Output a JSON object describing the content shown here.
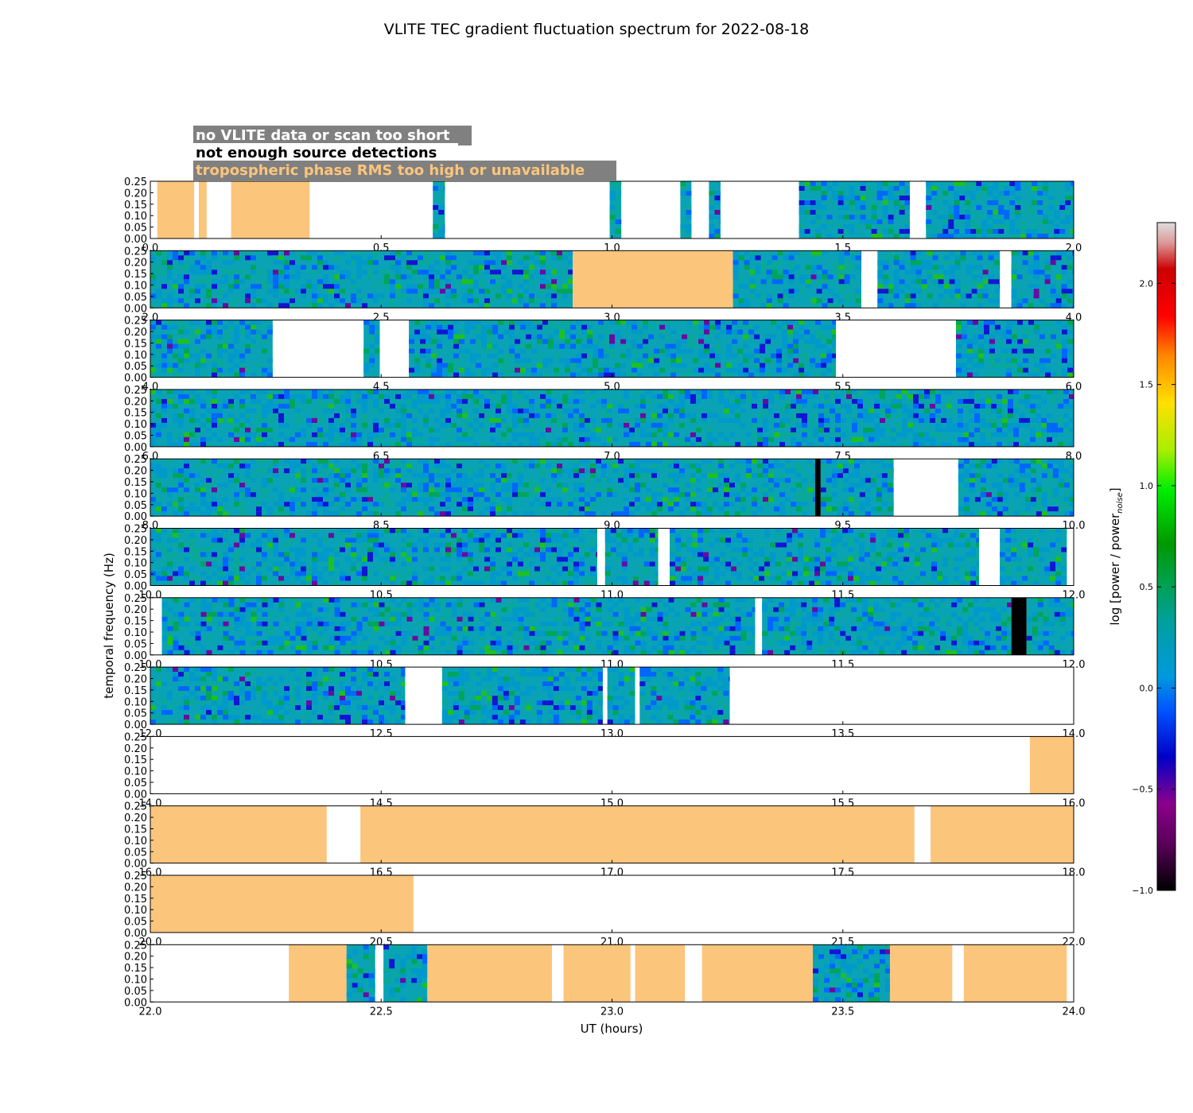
{
  "chart_data": {
    "type": "heatmap",
    "title": "VLITE TEC gradient fluctuation spectrum for 2022-08-18",
    "xlabel": "UT (hours)",
    "ylabel": "temporal frequency (Hz)",
    "colorbar_label": "log [power / power",
    "colorbar_label_sub": "noise",
    "colorbar_label_end": "]",
    "colorbar_range": [
      -1.0,
      2.3
    ],
    "colorbar_ticks": [
      "−1.0",
      "−0.5",
      "0.0",
      "0.5",
      "1.0",
      "1.5",
      "2.0"
    ],
    "colorbar_tick_values": [
      -1.0,
      -0.5,
      0.0,
      0.5,
      1.0,
      1.5,
      2.0
    ],
    "ylim": [
      0,
      0.25
    ],
    "y_ticks": [
      "0.00",
      "0.05",
      "0.10",
      "0.15",
      "0.20",
      "0.25"
    ],
    "y_tick_values": [
      0,
      0.05,
      0.1,
      0.15,
      0.2,
      0.25
    ],
    "legend": [
      {
        "label": "no VLITE data or scan too short",
        "color": "#ffffff"
      },
      {
        "label": "not enough source detections",
        "color": "#000000"
      },
      {
        "label": "tropospheric phase RMS too high or unavailable",
        "color": "#fcc57c"
      }
    ],
    "colors": {
      "tropo": "#fcc57c",
      "nodet": "#000000",
      "nodata": "#ffffff",
      "legend_bg": "#808080"
    },
    "panels": [
      {
        "x_ticks": [
          "0.0",
          "0.5",
          "1.0",
          "1.5",
          "2.0"
        ],
        "start": 0.0,
        "end": 2.0,
        "segments": [
          {
            "t0": 0.015,
            "t1": 0.095,
            "kind": "tropo"
          },
          {
            "t0": 0.105,
            "t1": 0.122,
            "kind": "tropo"
          },
          {
            "t0": 0.175,
            "t1": 0.345,
            "kind": "tropo"
          },
          {
            "t0": 0.612,
            "t1": 0.638,
            "kind": "data"
          },
          {
            "t0": 0.995,
            "t1": 1.02,
            "kind": "data"
          },
          {
            "t0": 1.148,
            "t1": 1.172,
            "kind": "data"
          },
          {
            "t0": 1.21,
            "t1": 1.235,
            "kind": "data"
          },
          {
            "t0": 1.405,
            "t1": 1.645,
            "kind": "data"
          },
          {
            "t0": 1.68,
            "t1": 2.0,
            "kind": "data"
          }
        ]
      },
      {
        "x_ticks": [
          "2.0",
          "2.5",
          "3.0",
          "3.5",
          "4.0"
        ],
        "start": 2.0,
        "end": 4.0,
        "segments": [
          {
            "t0": 2.0,
            "t1": 2.915,
            "kind": "data"
          },
          {
            "t0": 2.915,
            "t1": 3.262,
            "kind": "tropo"
          },
          {
            "t0": 3.262,
            "t1": 3.54,
            "kind": "data"
          },
          {
            "t0": 3.575,
            "t1": 3.61,
            "kind": "data"
          },
          {
            "t0": 3.61,
            "t1": 3.84,
            "kind": "data"
          },
          {
            "t0": 3.865,
            "t1": 4.0,
            "kind": "data"
          }
        ]
      },
      {
        "x_ticks": [
          "4.0",
          "4.5",
          "5.0",
          "5.5",
          "6.0"
        ],
        "start": 4.0,
        "end": 6.0,
        "segments": [
          {
            "t0": 4.0,
            "t1": 4.265,
            "kind": "data"
          },
          {
            "t0": 4.462,
            "t1": 4.497,
            "kind": "data"
          },
          {
            "t0": 4.56,
            "t1": 5.485,
            "kind": "data"
          },
          {
            "t0": 5.745,
            "t1": 6.0,
            "kind": "data"
          }
        ]
      },
      {
        "x_ticks": [
          "6.0",
          "6.5",
          "7.0",
          "7.5",
          "8.0"
        ],
        "start": 6.0,
        "end": 8.0,
        "segments": [
          {
            "t0": 6.0,
            "t1": 8.0,
            "kind": "data"
          }
        ]
      },
      {
        "x_ticks": [
          "8.0",
          "8.5",
          "9.0",
          "9.5",
          "10.0"
        ],
        "start": 8.0,
        "end": 10.0,
        "segments": [
          {
            "t0": 8.0,
            "t1": 9.44,
            "kind": "data"
          },
          {
            "t0": 9.44,
            "t1": 9.452,
            "kind": "nodet"
          },
          {
            "t0": 9.452,
            "t1": 9.61,
            "kind": "data"
          },
          {
            "t0": 9.75,
            "t1": 10.0,
            "kind": "data"
          }
        ]
      },
      {
        "x_ticks": [
          "10.0",
          "10.5",
          "11.0",
          "11.5",
          "12.0"
        ],
        "start": 10.0,
        "end": 12.0,
        "segments": [
          {
            "t0": 10.0,
            "t1": 10.968,
            "kind": "data"
          },
          {
            "t0": 10.985,
            "t1": 11.1,
            "kind": "data"
          },
          {
            "t0": 11.125,
            "t1": 11.795,
            "kind": "data"
          },
          {
            "t0": 11.84,
            "t1": 11.985,
            "kind": "data"
          }
        ]
      },
      {
        "x_ticks": [
          "10.0",
          "10.5",
          "11.0",
          "11.5",
          "12.0"
        ],
        "start": 10.0,
        "end": 12.0,
        "segments": [
          {
            "t0": 10.025,
            "t1": 11.31,
            "kind": "data"
          },
          {
            "t0": 11.325,
            "t1": 11.865,
            "kind": "data"
          },
          {
            "t0": 11.865,
            "t1": 11.898,
            "kind": "nodet"
          },
          {
            "t0": 11.898,
            "t1": 12.0,
            "kind": "data"
          }
        ]
      },
      {
        "x_ticks": [
          "12.0",
          "12.5",
          "13.0",
          "13.5",
          "14.0"
        ],
        "start": 12.0,
        "end": 14.0,
        "segments": [
          {
            "t0": 12.0,
            "t1": 12.552,
            "kind": "data"
          },
          {
            "t0": 12.632,
            "t1": 12.98,
            "kind": "data"
          },
          {
            "t0": 12.99,
            "t1": 13.05,
            "kind": "data"
          },
          {
            "t0": 13.06,
            "t1": 13.255,
            "kind": "data"
          }
        ]
      },
      {
        "x_ticks": [
          "14.0",
          "14.5",
          "15.0",
          "15.5",
          "16.0"
        ],
        "start": 14.0,
        "end": 16.0,
        "segments": [
          {
            "t0": 15.905,
            "t1": 16.0,
            "kind": "tropo"
          }
        ]
      },
      {
        "x_ticks": [
          "16.0",
          "16.5",
          "17.0",
          "17.5",
          "18.0"
        ],
        "start": 16.0,
        "end": 18.0,
        "segments": [
          {
            "t0": 16.0,
            "t1": 16.382,
            "kind": "tropo"
          },
          {
            "t0": 16.455,
            "t1": 17.655,
            "kind": "tropo"
          },
          {
            "t0": 17.69,
            "t1": 18.0,
            "kind": "tropo"
          }
        ]
      },
      {
        "x_ticks": [
          "20.0",
          "20.5",
          "21.0",
          "21.5",
          "22.0"
        ],
        "start": 20.0,
        "end": 22.0,
        "segments": [
          {
            "t0": 20.0,
            "t1": 20.57,
            "kind": "tropo"
          }
        ]
      },
      {
        "x_ticks": [
          "22.0",
          "22.5",
          "23.0",
          "23.5",
          "24.0"
        ],
        "start": 22.0,
        "end": 24.0,
        "segments": [
          {
            "t0": 22.3,
            "t1": 22.425,
            "kind": "tropo"
          },
          {
            "t0": 22.425,
            "t1": 22.487,
            "kind": "data"
          },
          {
            "t0": 22.505,
            "t1": 22.6,
            "kind": "data"
          },
          {
            "t0": 22.6,
            "t1": 22.87,
            "kind": "tropo"
          },
          {
            "t0": 22.895,
            "t1": 23.04,
            "kind": "tropo"
          },
          {
            "t0": 23.05,
            "t1": 23.158,
            "kind": "tropo"
          },
          {
            "t0": 23.195,
            "t1": 23.435,
            "kind": "tropo"
          },
          {
            "t0": 23.435,
            "t1": 23.602,
            "kind": "data"
          },
          {
            "t0": 23.602,
            "t1": 23.737,
            "kind": "tropo"
          },
          {
            "t0": 23.762,
            "t1": 23.985,
            "kind": "tropo"
          }
        ]
      }
    ]
  }
}
